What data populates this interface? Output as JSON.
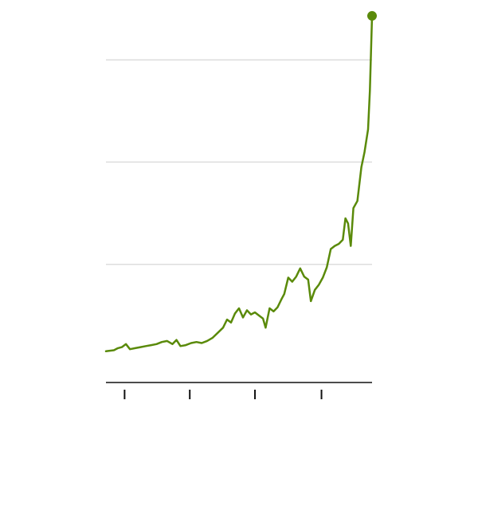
{
  "chart_data": {
    "type": "line",
    "title": "",
    "xlabel": "",
    "ylabel": "",
    "grid": true,
    "legend": "none",
    "x_tick_labels": [],
    "y_tick_labels": [],
    "ylim": [
      0,
      3
    ],
    "gridlines": [
      1,
      2,
      3
    ],
    "x_tick_positions": [
      0.07,
      0.315,
      0.56,
      0.81
    ],
    "colors": {
      "series": "#5a8a0a",
      "grid": "#dddddd",
      "axis": "#111111"
    },
    "series": [
      {
        "values": [
          [
            0.0,
            0.15
          ],
          [
            0.03,
            0.16
          ],
          [
            0.045,
            0.18
          ],
          [
            0.06,
            0.19
          ],
          [
            0.075,
            0.22
          ],
          [
            0.09,
            0.17
          ],
          [
            0.11,
            0.18
          ],
          [
            0.13,
            0.19
          ],
          [
            0.15,
            0.2
          ],
          [
            0.17,
            0.21
          ],
          [
            0.19,
            0.22
          ],
          [
            0.21,
            0.24
          ],
          [
            0.23,
            0.25
          ],
          [
            0.25,
            0.22
          ],
          [
            0.265,
            0.26
          ],
          [
            0.28,
            0.2
          ],
          [
            0.3,
            0.21
          ],
          [
            0.32,
            0.23
          ],
          [
            0.34,
            0.24
          ],
          [
            0.36,
            0.23
          ],
          [
            0.38,
            0.25
          ],
          [
            0.4,
            0.28
          ],
          [
            0.42,
            0.33
          ],
          [
            0.44,
            0.38
          ],
          [
            0.455,
            0.46
          ],
          [
            0.47,
            0.43
          ],
          [
            0.485,
            0.52
          ],
          [
            0.5,
            0.57
          ],
          [
            0.515,
            0.48
          ],
          [
            0.53,
            0.55
          ],
          [
            0.545,
            0.51
          ],
          [
            0.56,
            0.53
          ],
          [
            0.575,
            0.5
          ],
          [
            0.59,
            0.47
          ],
          [
            0.6,
            0.38
          ],
          [
            0.615,
            0.57
          ],
          [
            0.63,
            0.54
          ],
          [
            0.645,
            0.58
          ],
          [
            0.66,
            0.66
          ],
          [
            0.67,
            0.71
          ],
          [
            0.685,
            0.87
          ],
          [
            0.7,
            0.83
          ],
          [
            0.715,
            0.88
          ],
          [
            0.73,
            0.96
          ],
          [
            0.745,
            0.88
          ],
          [
            0.76,
            0.85
          ],
          [
            0.77,
            0.64
          ],
          [
            0.785,
            0.75
          ],
          [
            0.8,
            0.8
          ],
          [
            0.815,
            0.87
          ],
          [
            0.83,
            0.97
          ],
          [
            0.845,
            1.15
          ],
          [
            0.86,
            1.18
          ],
          [
            0.875,
            1.2
          ],
          [
            0.89,
            1.24
          ],
          [
            0.9,
            1.45
          ],
          [
            0.91,
            1.4
          ],
          [
            0.92,
            1.18
          ],
          [
            0.93,
            1.55
          ],
          [
            0.945,
            1.62
          ],
          [
            0.96,
            1.95
          ],
          [
            0.972,
            2.1
          ],
          [
            0.985,
            2.32
          ],
          [
            0.992,
            2.7
          ],
          [
            1.0,
            3.43
          ]
        ]
      }
    ]
  }
}
